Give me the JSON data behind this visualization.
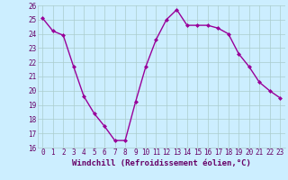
{
  "x": [
    0,
    1,
    2,
    3,
    4,
    5,
    6,
    7,
    8,
    9,
    10,
    11,
    12,
    13,
    14,
    15,
    16,
    17,
    18,
    19,
    20,
    21,
    22,
    23
  ],
  "y": [
    25.1,
    24.2,
    23.9,
    21.7,
    19.6,
    18.4,
    17.5,
    16.5,
    16.5,
    19.2,
    21.7,
    23.6,
    25.0,
    25.7,
    24.6,
    24.6,
    24.6,
    24.4,
    24.0,
    22.6,
    21.7,
    20.6,
    20.0,
    19.5
  ],
  "line_color": "#990099",
  "marker": "D",
  "marker_size": 2,
  "bg_color": "#cceeff",
  "grid_color": "#aacccc",
  "xlabel": "Windchill (Refroidissement éolien,°C)",
  "xlabel_color": "#660066",
  "tick_color": "#660066",
  "ylim": [
    16,
    26
  ],
  "xlim_min": -0.5,
  "xlim_max": 23.5,
  "yticks": [
    16,
    17,
    18,
    19,
    20,
    21,
    22,
    23,
    24,
    25,
    26
  ],
  "xticks": [
    0,
    1,
    2,
    3,
    4,
    5,
    6,
    7,
    8,
    9,
    10,
    11,
    12,
    13,
    14,
    15,
    16,
    17,
    18,
    19,
    20,
    21,
    22,
    23
  ],
  "tick_fontsize": 5.5,
  "xlabel_fontsize": 6.5,
  "linewidth": 1.0
}
